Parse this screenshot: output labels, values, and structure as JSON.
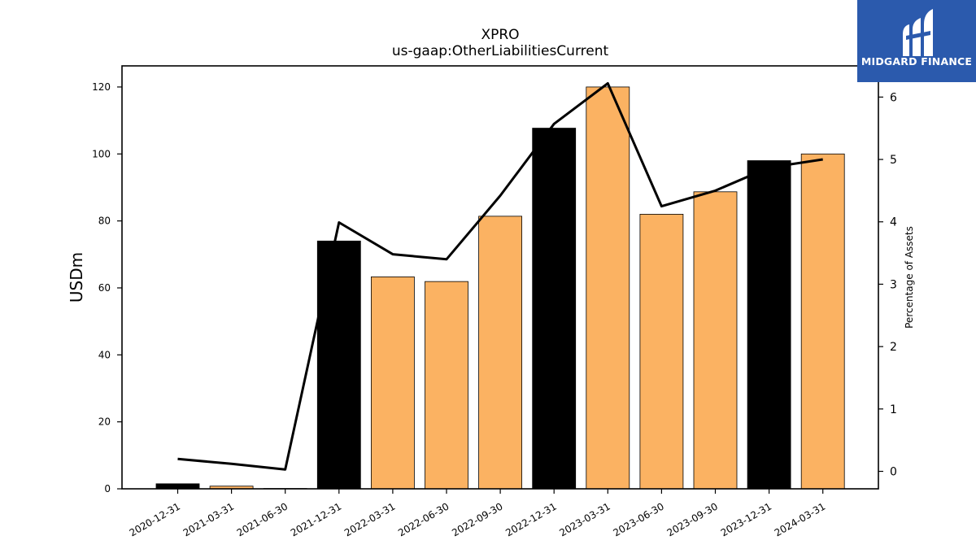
{
  "chart_data": {
    "type": "bar",
    "title": "XPRO",
    "subtitle": "us-gaap:OtherLiabilitiesCurrent",
    "ylabel": "USDm",
    "y2label": "Percentage of Assets",
    "categories": [
      "2020-12-31",
      "2021-03-31",
      "2021-06-30",
      "2021-12-31",
      "2022-03-31",
      "2022-06-30",
      "2022-09-30",
      "2022-12-31",
      "2023-03-31",
      "2023-06-30",
      "2023-09-30",
      "2023-12-31",
      "2024-03-31"
    ],
    "series": [
      {
        "type": "bar",
        "values": [
          1.5,
          0.8,
          0.1,
          74.0,
          63.3,
          61.9,
          81.4,
          107.7,
          120.0,
          82.0,
          88.7,
          98.0,
          100.0
        ],
        "colors": [
          "#000000",
          "#fbb262",
          "#fbb262",
          "#000000",
          "#fbb262",
          "#fbb262",
          "#fbb262",
          "#000000",
          "#fbb262",
          "#fbb262",
          "#fbb262",
          "#000000",
          "#fbb262"
        ]
      },
      {
        "type": "line",
        "axis": "right",
        "color": "#000000",
        "values": [
          0.2,
          0.12,
          0.03,
          3.99,
          3.48,
          3.4,
          4.42,
          5.57,
          6.22,
          4.25,
          4.5,
          4.87,
          5.0
        ]
      }
    ],
    "ylim": [
      0,
      126.3
    ],
    "y2lim": [
      -0.28,
      6.5
    ],
    "yticks": [
      0,
      20,
      40,
      60,
      80,
      100,
      120
    ],
    "y2ticks": [
      0,
      1,
      2,
      3,
      4,
      5,
      6
    ],
    "grid": false
  },
  "logo": {
    "text": "MIDGARD FINANCE"
  }
}
